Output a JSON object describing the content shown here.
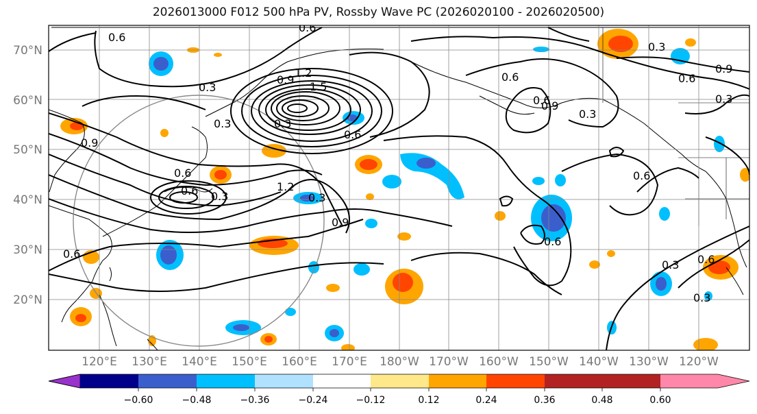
{
  "title": "2026013000 F012 500 hPa PV, Rossby Wave PC (2026020100 - 2026020500)",
  "map": {
    "lat_labels": [
      "70°N",
      "60°N",
      "50°N",
      "40°N",
      "30°N",
      "20°N"
    ],
    "lon_labels": [
      "120°E",
      "130°E",
      "140°E",
      "150°E",
      "160°E",
      "170°E",
      "180°W",
      "170°W",
      "160°W",
      "150°W",
      "140°W",
      "130°W",
      "120°W"
    ],
    "contour_labels": [
      "0.6",
      "0.6",
      "0.3",
      "0.9",
      "1.2",
      "1.5",
      "0.6",
      "0.3",
      "0.9",
      "1.2",
      "0.3",
      "0.6",
      "0.9",
      "0.6",
      "0.3",
      "0.6",
      "0.6",
      "0.9",
      "0.3",
      "0.6",
      "0.3",
      "0.6",
      "0.3",
      "0.6",
      "0.3",
      "0.6",
      "0.9",
      "0.3",
      "0.6",
      "0.3"
    ]
  },
  "colorbar": {
    "ticks": [
      "−0.60",
      "−0.48",
      "−0.36",
      "−0.24",
      "−0.12",
      "0.12",
      "0.24",
      "0.36",
      "0.48",
      "0.60"
    ],
    "colors": [
      "#9932cc",
      "#00008b",
      "#3a5fcd",
      "#00bfff",
      "#b0e2ff",
      "#ffffff",
      "#ffe88a",
      "#ffa500",
      "#ff4500",
      "#b22222",
      "#ff88aa"
    ]
  }
}
